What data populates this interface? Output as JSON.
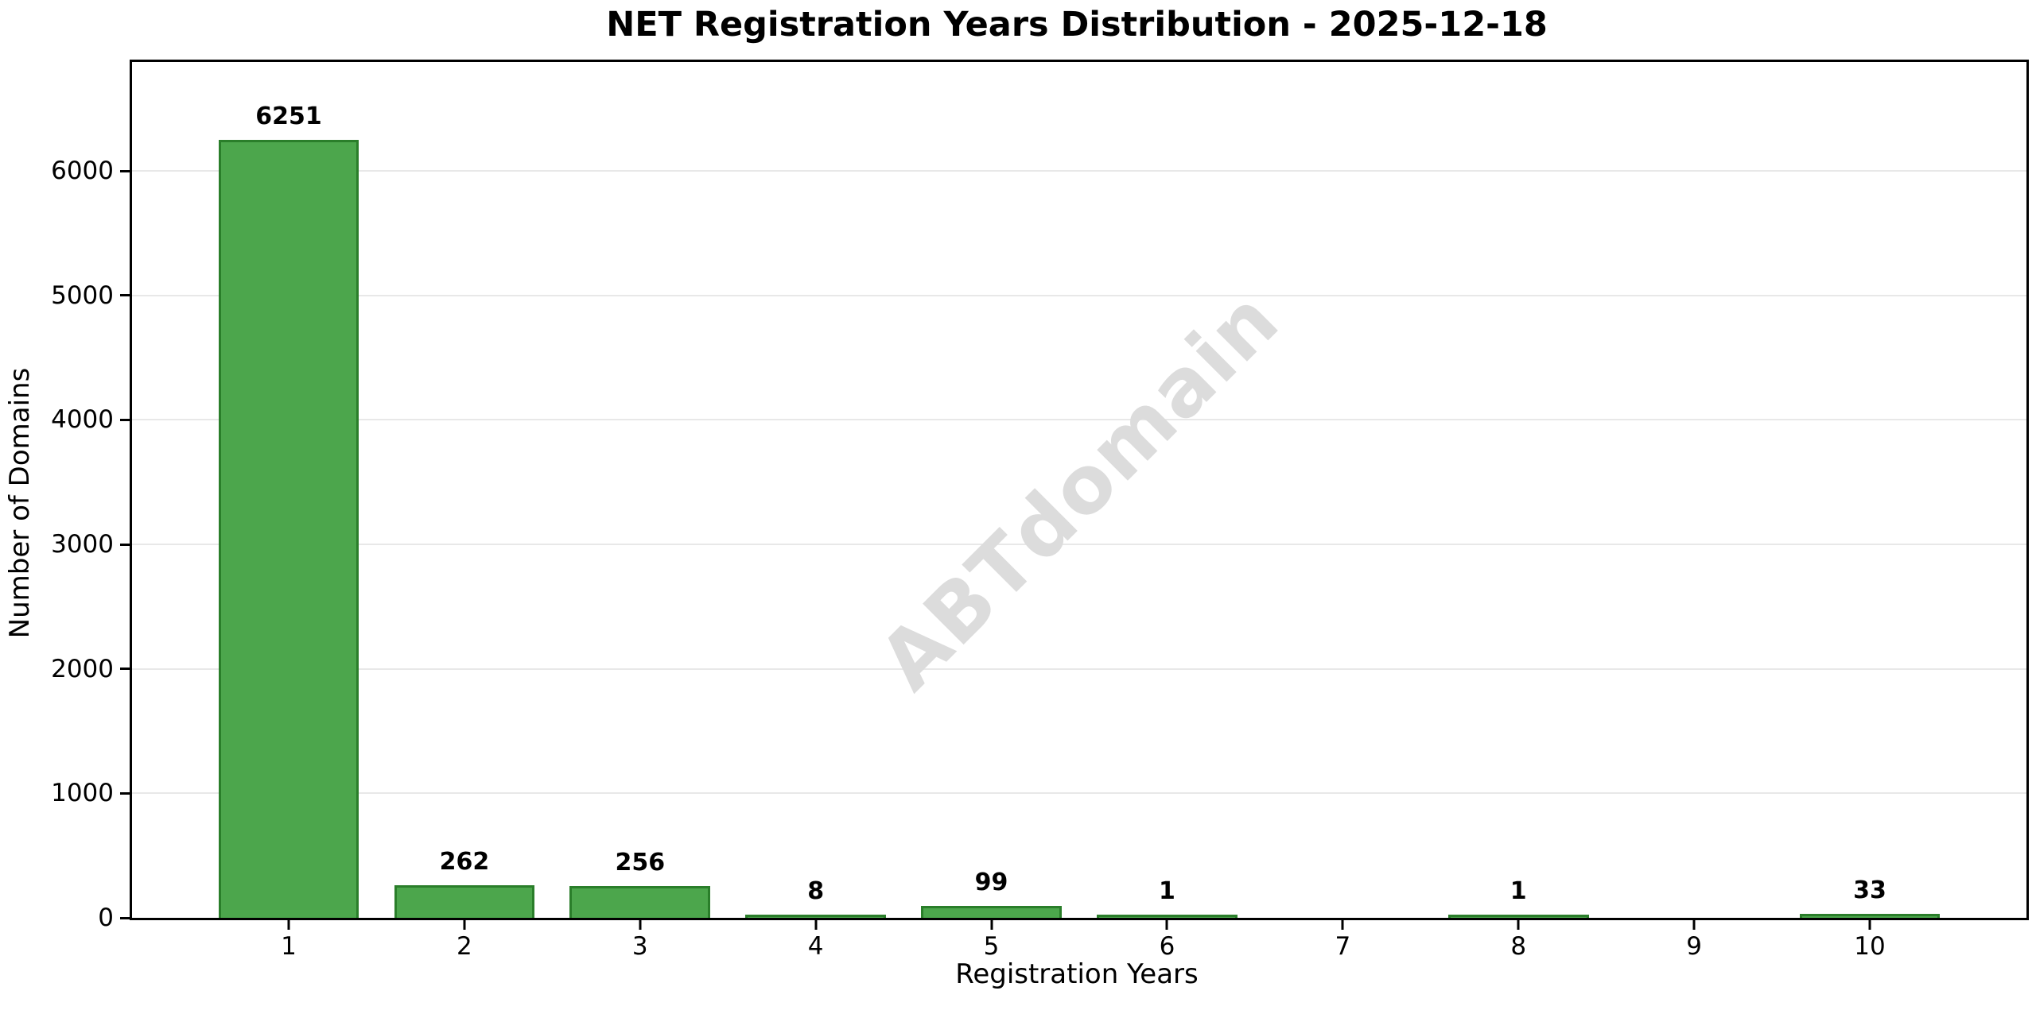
{
  "chart_data": {
    "type": "bar",
    "title": "NET Registration Years Distribution - 2025-12-18",
    "xlabel": "Registration Years",
    "ylabel": "Number of Domains",
    "watermark": "ABTdomain",
    "categories": [
      "1",
      "2",
      "3",
      "4",
      "5",
      "6",
      "7",
      "8",
      "9",
      "10"
    ],
    "values": [
      6251,
      262,
      256,
      8,
      99,
      1,
      0,
      1,
      0,
      33
    ],
    "bar_labels": [
      "6251",
      "262",
      "256",
      "8",
      "99",
      "1",
      "",
      "1",
      "",
      "33"
    ],
    "y_ticks": [
      0,
      1000,
      2000,
      3000,
      4000,
      5000,
      6000
    ],
    "ylim": [
      0,
      6876
    ],
    "xlim": [
      0.108,
      10.892
    ],
    "bar_width_units": 0.8,
    "grid": "horizontal-only",
    "legend": null,
    "colors": {
      "bar_fill": "#4ca64c",
      "bar_edge": "#2a7e2a",
      "grid": "#e8e8e8",
      "spine": "#000000",
      "text": "#000000",
      "watermark": "#dcdcdc",
      "background": "#ffffff"
    }
  }
}
